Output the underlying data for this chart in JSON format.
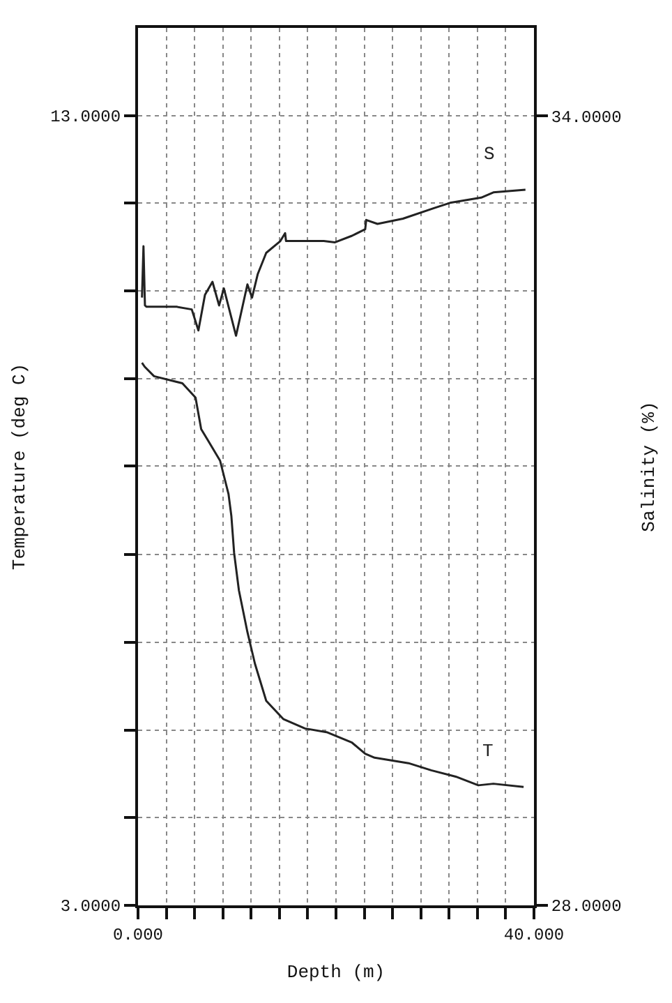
{
  "chart_data": {
    "type": "line",
    "xlabel": "Depth (m)",
    "ylabel": "Temperature (deg C)",
    "y2label": "Salinity (%)",
    "xlim": [
      0,
      40
    ],
    "xticks": [
      {
        "value": 0,
        "label": "0.000"
      },
      {
        "value": 2.857,
        "label": null
      },
      {
        "value": 5.714,
        "label": null
      },
      {
        "value": 8.571,
        "label": null
      },
      {
        "value": 11.429,
        "label": null
      },
      {
        "value": 14.286,
        "label": null
      },
      {
        "value": 17.143,
        "label": null
      },
      {
        "value": 20,
        "label": null
      },
      {
        "value": 22.857,
        "label": null
      },
      {
        "value": 25.714,
        "label": null
      },
      {
        "value": 28.571,
        "label": null
      },
      {
        "value": 31.429,
        "label": null
      },
      {
        "value": 34.286,
        "label": null
      },
      {
        "value": 37.143,
        "label": null
      },
      {
        "value": 40,
        "label": "40.000"
      }
    ],
    "ylim": [
      3,
      14.11
    ],
    "yticks": [
      {
        "value": 3,
        "label": "3.0000"
      },
      {
        "value": 4.11,
        "label": null
      },
      {
        "value": 5.22,
        "label": null
      },
      {
        "value": 6.33,
        "label": null
      },
      {
        "value": 7.44,
        "label": null
      },
      {
        "value": 8.56,
        "label": null
      },
      {
        "value": 9.67,
        "label": null
      },
      {
        "value": 10.78,
        "label": null
      },
      {
        "value": 11.89,
        "label": null
      },
      {
        "value": 13,
        "label": "13.0000"
      }
    ],
    "y2lim": [
      28,
      34.67
    ],
    "y2ticks": [
      {
        "value": 28,
        "label": "28.0000"
      },
      {
        "value": 34,
        "label": "34.0000"
      }
    ],
    "grid": true,
    "legend": false,
    "line_style": "solid",
    "marker": "none",
    "series": [
      {
        "name": "T",
        "color": "#222222",
        "x": [
          0.4,
          0.67,
          1.62,
          4.48,
          5.81,
          6.38,
          7.05,
          8.29,
          9.14,
          9.43,
          9.71,
          10.19,
          11.05,
          11.81,
          12.95,
          14.67,
          16.86,
          19.14,
          21.62,
          22.95,
          23.9,
          27.33,
          29.62,
          32.1,
          34.38,
          35.9,
          38.95
        ],
        "values": [
          9.87,
          9.82,
          9.7,
          9.61,
          9.43,
          9.03,
          8.89,
          8.63,
          8.21,
          7.93,
          7.46,
          6.99,
          6.46,
          6.06,
          5.59,
          5.36,
          5.24,
          5.19,
          5.06,
          4.92,
          4.87,
          4.8,
          4.71,
          4.63,
          4.52,
          4.54,
          4.5
        ]
      },
      {
        "name": "S",
        "color": "#222222",
        "axis": "y2",
        "x": [
          0.4,
          0.55,
          0.7,
          0.86,
          3.9,
          5.43,
          6.1,
          6.76,
          7.52,
          8.19,
          8.67,
          9.9,
          11.05,
          11.52,
          12.1,
          12.95,
          14.38,
          14.86,
          14.95,
          18.76,
          19.9,
          21.62,
          22.95,
          23.05,
          24.19,
          26.76,
          29.9,
          31.52,
          34.67,
          35.9,
          39.14
        ],
        "values": [
          32.62,
          33.01,
          32.56,
          32.55,
          32.55,
          32.53,
          32.37,
          32.64,
          32.74,
          32.56,
          32.69,
          32.33,
          32.72,
          32.62,
          32.8,
          32.96,
          33.05,
          33.11,
          33.05,
          33.05,
          33.04,
          33.09,
          33.14,
          33.21,
          33.18,
          33.22,
          33.3,
          33.34,
          33.38,
          33.42,
          33.44
        ]
      }
    ]
  }
}
